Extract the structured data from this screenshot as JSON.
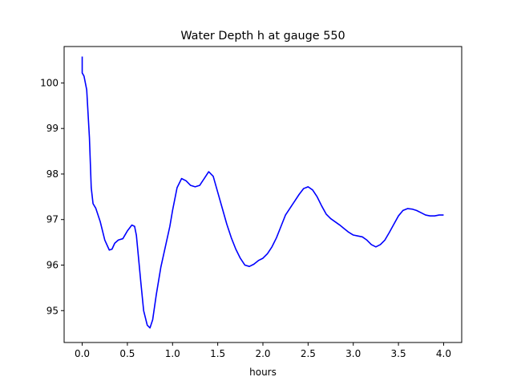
{
  "chart_data": {
    "type": "line",
    "title": "Water Depth h at gauge 550",
    "xlabel": "hours",
    "ylabel": "",
    "xlim": [
      -0.2,
      4.2
    ],
    "ylim": [
      94.3,
      100.8
    ],
    "xticks": [
      0.0,
      0.5,
      1.0,
      1.5,
      2.0,
      2.5,
      3.0,
      3.5,
      4.0
    ],
    "xtick_labels": [
      "0.0",
      "0.5",
      "1.0",
      "1.5",
      "2.0",
      "2.5",
      "3.0",
      "3.5",
      "4.0"
    ],
    "yticks": [
      95,
      96,
      97,
      98,
      99,
      100
    ],
    "ytick_labels": [
      "95",
      "96",
      "97",
      "98",
      "99",
      "100"
    ],
    "grid": false,
    "series": [
      {
        "color": "#0000ff",
        "x": [
          0.0,
          0.0,
          0.0,
          0.02,
          0.05,
          0.08,
          0.1,
          0.12,
          0.15,
          0.2,
          0.25,
          0.3,
          0.33,
          0.36,
          0.4,
          0.45,
          0.5,
          0.55,
          0.58,
          0.6,
          0.65,
          0.68,
          0.72,
          0.75,
          0.78,
          0.82,
          0.87,
          0.92,
          0.97,
          1.0,
          1.05,
          1.1,
          1.15,
          1.2,
          1.25,
          1.3,
          1.35,
          1.4,
          1.45,
          1.5,
          1.55,
          1.6,
          1.65,
          1.7,
          1.75,
          1.8,
          1.85,
          1.9,
          1.95,
          2.0,
          2.05,
          2.1,
          2.15,
          2.2,
          2.25,
          2.3,
          2.35,
          2.4,
          2.45,
          2.5,
          2.55,
          2.6,
          2.65,
          2.7,
          2.75,
          2.8,
          2.85,
          2.9,
          2.95,
          3.0,
          3.05,
          3.1,
          3.15,
          3.2,
          3.25,
          3.3,
          3.35,
          3.4,
          3.45,
          3.5,
          3.55,
          3.6,
          3.65,
          3.7,
          3.75,
          3.8,
          3.85,
          3.9,
          3.95,
          4.0
        ],
        "values": [
          100.58,
          100.25,
          100.22,
          100.15,
          99.85,
          98.8,
          97.7,
          97.35,
          97.25,
          96.95,
          96.55,
          96.33,
          96.35,
          96.48,
          96.55,
          96.58,
          96.75,
          96.88,
          96.85,
          96.65,
          95.6,
          95.0,
          94.68,
          94.62,
          94.8,
          95.35,
          95.95,
          96.4,
          96.85,
          97.2,
          97.7,
          97.9,
          97.85,
          97.75,
          97.72,
          97.75,
          97.9,
          98.05,
          97.95,
          97.6,
          97.25,
          96.9,
          96.6,
          96.35,
          96.15,
          96.0,
          95.97,
          96.02,
          96.1,
          96.15,
          96.25,
          96.4,
          96.6,
          96.85,
          97.1,
          97.25,
          97.4,
          97.55,
          97.68,
          97.72,
          97.65,
          97.5,
          97.3,
          97.12,
          97.02,
          96.95,
          96.88,
          96.8,
          96.72,
          96.66,
          96.64,
          96.62,
          96.55,
          96.45,
          96.4,
          96.45,
          96.55,
          96.72,
          96.9,
          97.08,
          97.2,
          97.24,
          97.23,
          97.2,
          97.15,
          97.1,
          97.08,
          97.08,
          97.1,
          97.1
        ]
      }
    ]
  }
}
